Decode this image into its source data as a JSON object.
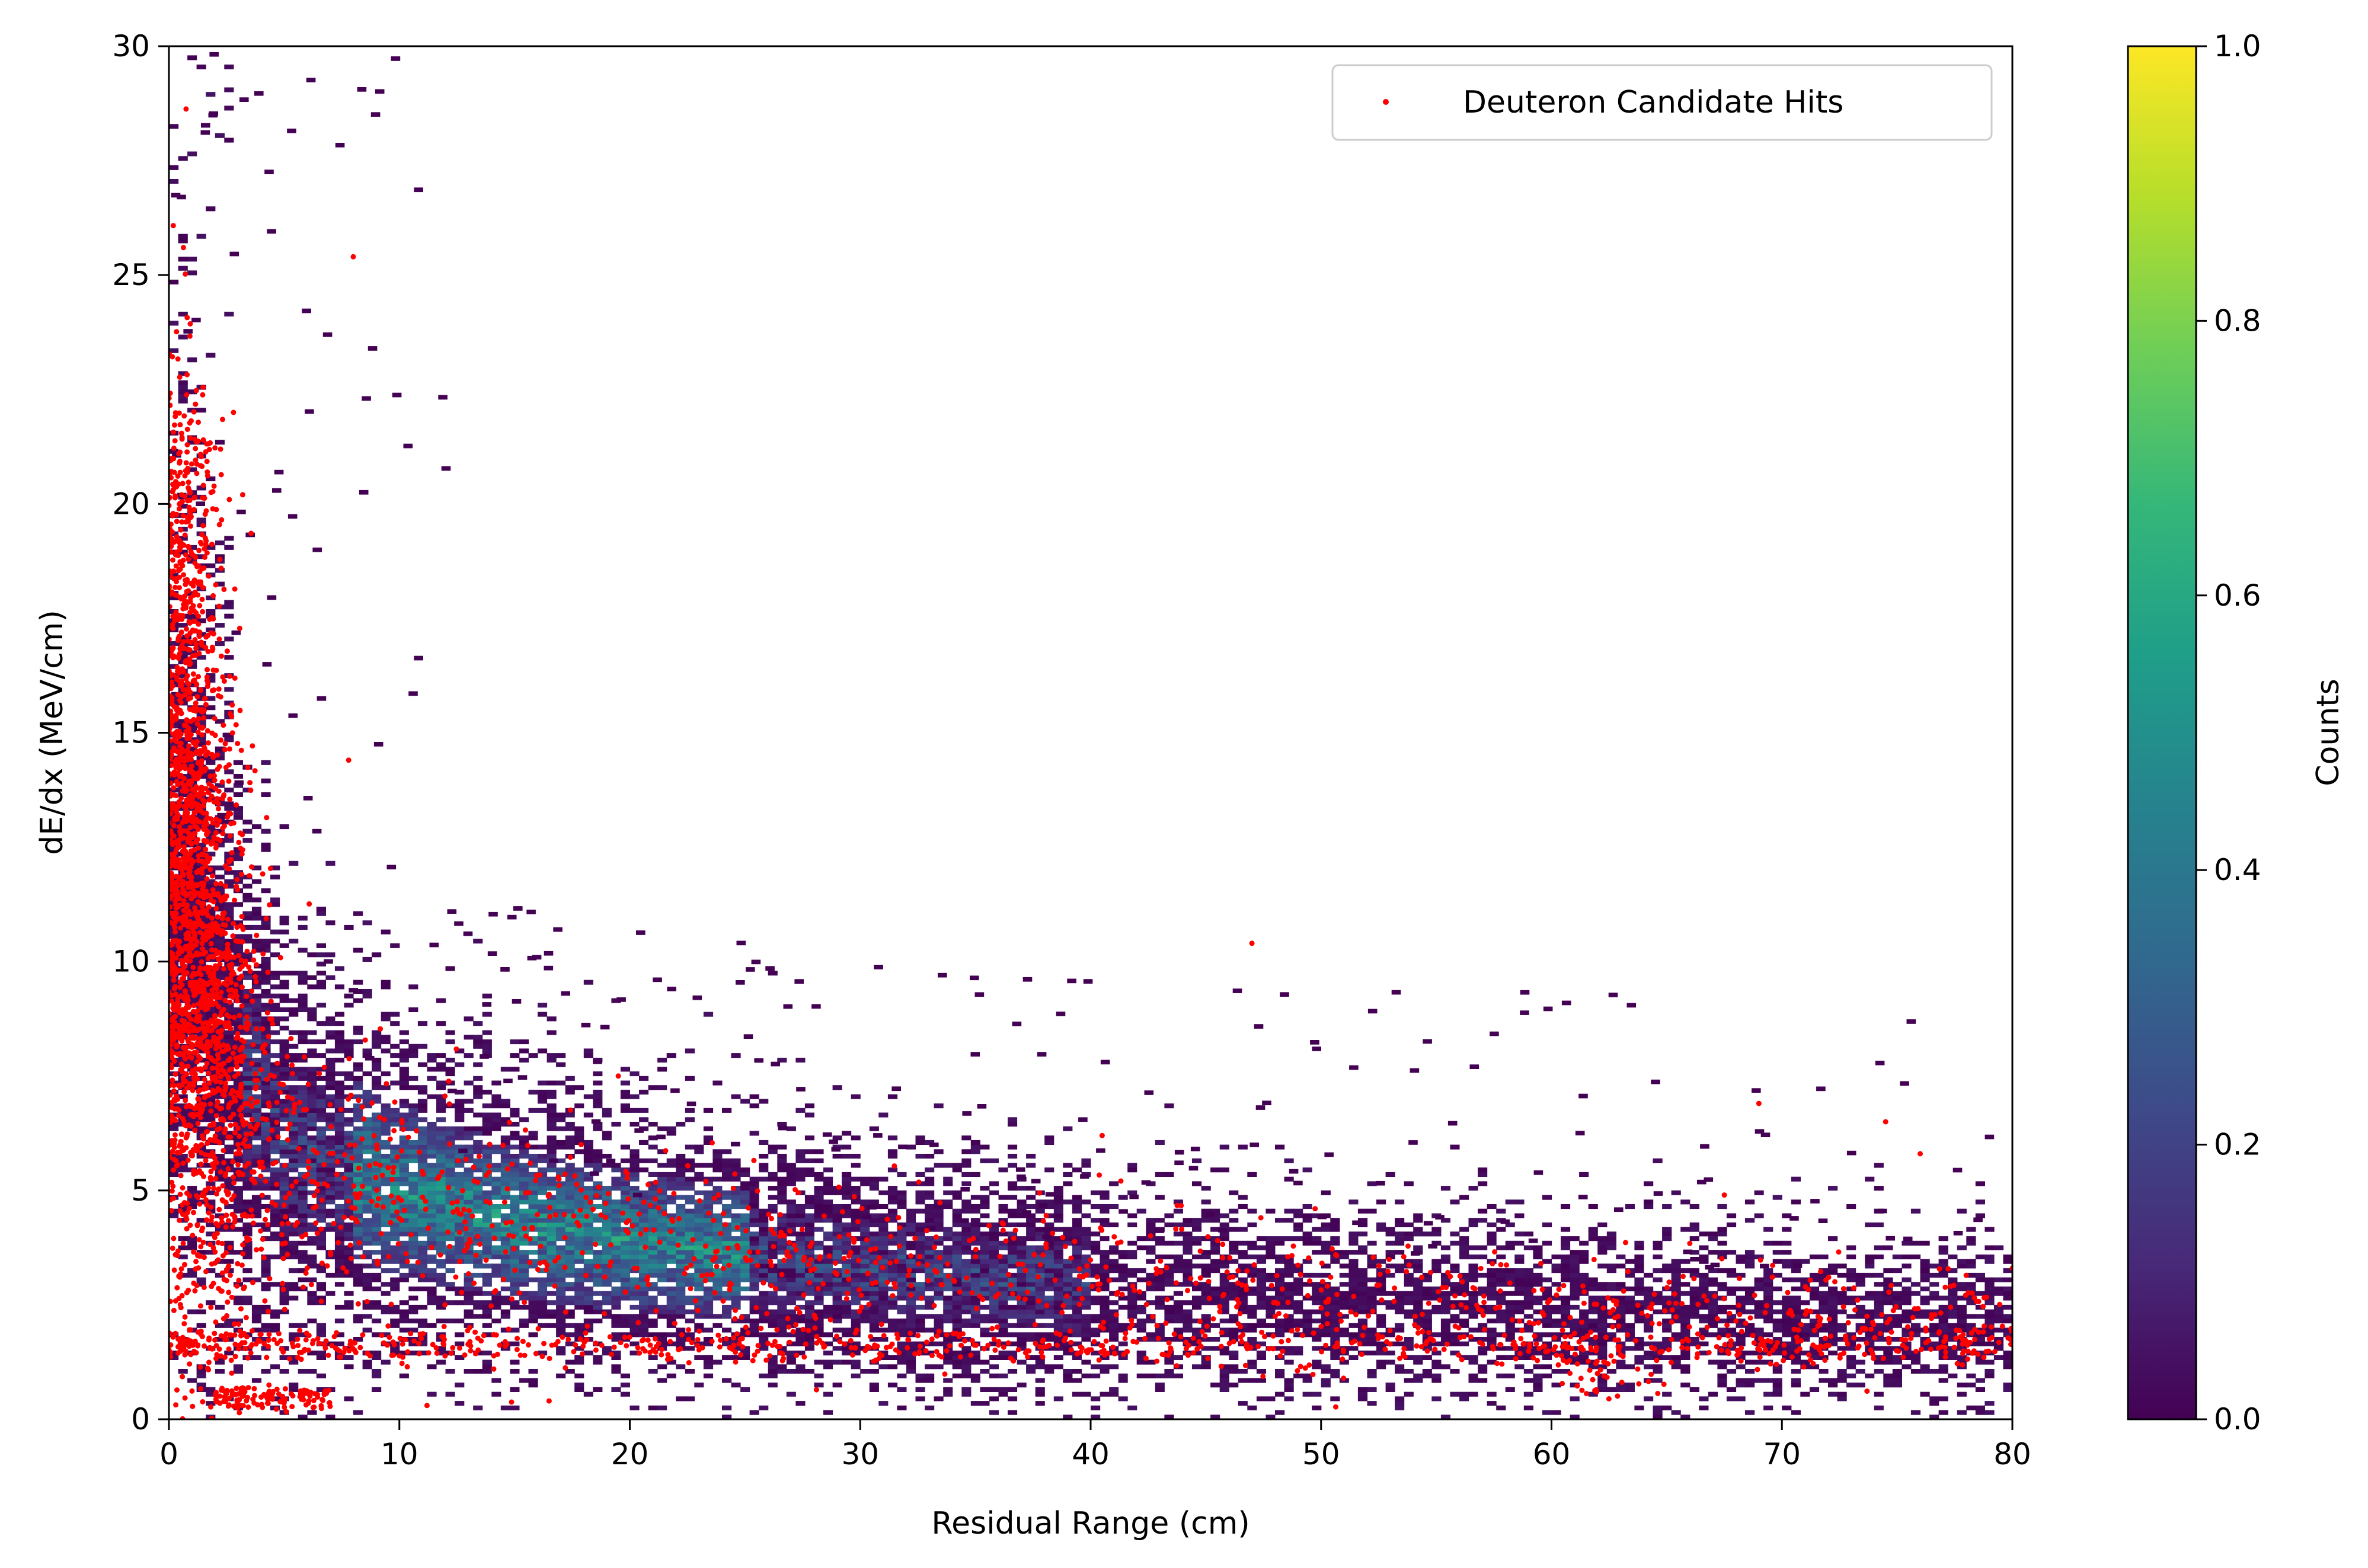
{
  "chart_data": [
    {
      "type": "heatmap",
      "xlabel": "Residual Range (cm)",
      "ylabel": "dE/dx (MeV/cm)",
      "xlim": [
        0,
        80
      ],
      "ylim": [
        0,
        30
      ],
      "xticks": [
        0,
        10,
        20,
        30,
        40,
        50,
        60,
        70,
        80
      ],
      "yticks": [
        0,
        5,
        10,
        15,
        20,
        25,
        30
      ],
      "grid": false,
      "colormap": "viridis",
      "colorbar": {
        "label": "Counts",
        "range": [
          0,
          1
        ],
        "ticks": [
          "0.0",
          "0.2",
          "0.4",
          "0.6",
          "0.8",
          "1.0"
        ],
        "stops": [
          "#440154",
          "#482878",
          "#3e4989",
          "#31688e",
          "#26828e",
          "#1f9e89",
          "#35b779",
          "#6ece58",
          "#b5de2b",
          "#fde725"
        ]
      },
      "density_band": {
        "description_points": [
          {
            "x": 0.5,
            "y_center": 12.0
          },
          {
            "x": 2,
            "y_center": 9.0
          },
          {
            "x": 5,
            "y_center": 6.0
          },
          {
            "x": 10,
            "y_center": 5.0
          },
          {
            "x": 15,
            "y_center": 4.3
          },
          {
            "x": 20,
            "y_center": 3.9
          },
          {
            "x": 30,
            "y_center": 3.3
          },
          {
            "x": 40,
            "y_center": 2.9
          },
          {
            "x": 50,
            "y_center": 2.6
          },
          {
            "x": 60,
            "y_center": 2.4
          },
          {
            "x": 70,
            "y_center": 2.2
          },
          {
            "x": 80,
            "y_center": 2.1
          }
        ],
        "peak_region_x": [
          8,
          25
        ],
        "peak_level": 0.65
      },
      "legend": {
        "position": "upper right",
        "entries": [
          {
            "label": "Deuteron Candidate Hits",
            "color": "#ff0000",
            "marker": "point"
          }
        ]
      },
      "scatter_series": {
        "name": "Deuteron Candidate Hits",
        "color": "#ff0000",
        "notable_points": [
          {
            "x": 8.0,
            "y": 25.4
          },
          {
            "x": 47.0,
            "y": 10.4
          },
          {
            "x": 69.0,
            "y": 6.9
          },
          {
            "x": 74.5,
            "y": 6.5
          },
          {
            "x": 76.0,
            "y": 5.8
          },
          {
            "x": 40.5,
            "y": 6.2
          },
          {
            "x": 19.5,
            "y": 7.5
          },
          {
            "x": 3.2,
            "y": 20.2
          },
          {
            "x": 2.8,
            "y": 22.0
          },
          {
            "x": 7.8,
            "y": 14.4
          },
          {
            "x": 80.0,
            "y": 3.3
          },
          {
            "x": 67.5,
            "y": 4.9
          },
          {
            "x": 11.2,
            "y": 0.3
          },
          {
            "x": 16.5,
            "y": 0.4
          }
        ]
      }
    }
  ]
}
